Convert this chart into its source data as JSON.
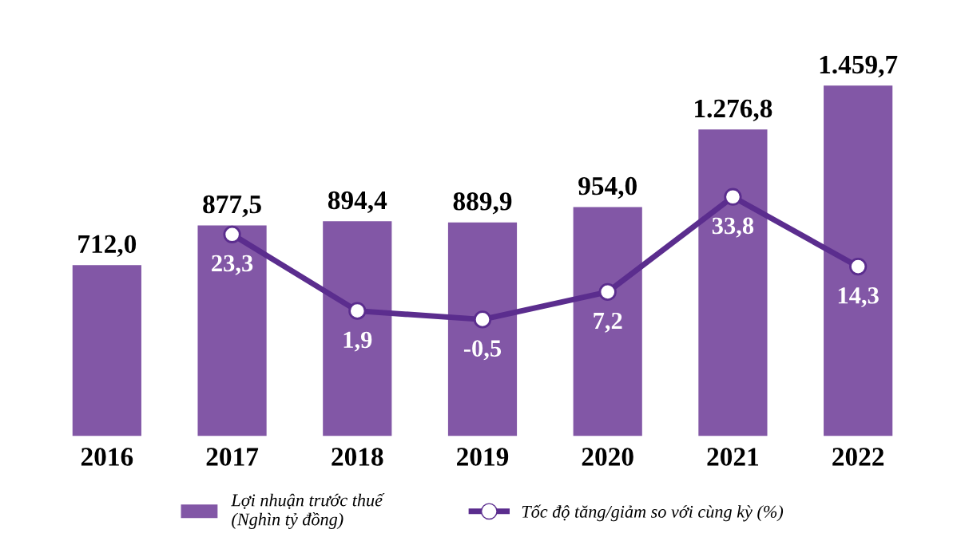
{
  "chart_data": {
    "type": "bar",
    "categories": [
      "2016",
      "2017",
      "2018",
      "2019",
      "2020",
      "2021",
      "2022"
    ],
    "series": [
      {
        "name": "Lợi nhuận trước thuế\n(Nghìn tỷ đồng)",
        "color": "#8257a6",
        "values": [
          712.0,
          877.5,
          894.4,
          889.9,
          954.0,
          1276.8,
          1459.7
        ],
        "value_labels": [
          "712,0",
          "877,5",
          "894,4",
          "889,9",
          "954,0",
          "1.276,8",
          "1.459,7"
        ]
      },
      {
        "name": "Tốc độ tăng/giảm so với cùng kỳ (%)",
        "type": "line",
        "axis": "y2",
        "color": "#5b2d8e",
        "values": [
          null,
          23.3,
          1.9,
          -0.5,
          7.2,
          33.8,
          14.3
        ],
        "value_labels": [
          null,
          "23,3",
          "1,9",
          "-0,5",
          "7,2",
          "33,8",
          "14,3"
        ]
      }
    ],
    "tick_labels": "x",
    "grid": false,
    "legend": "bottom",
    "marker": "circle",
    "line_style": "solid"
  }
}
